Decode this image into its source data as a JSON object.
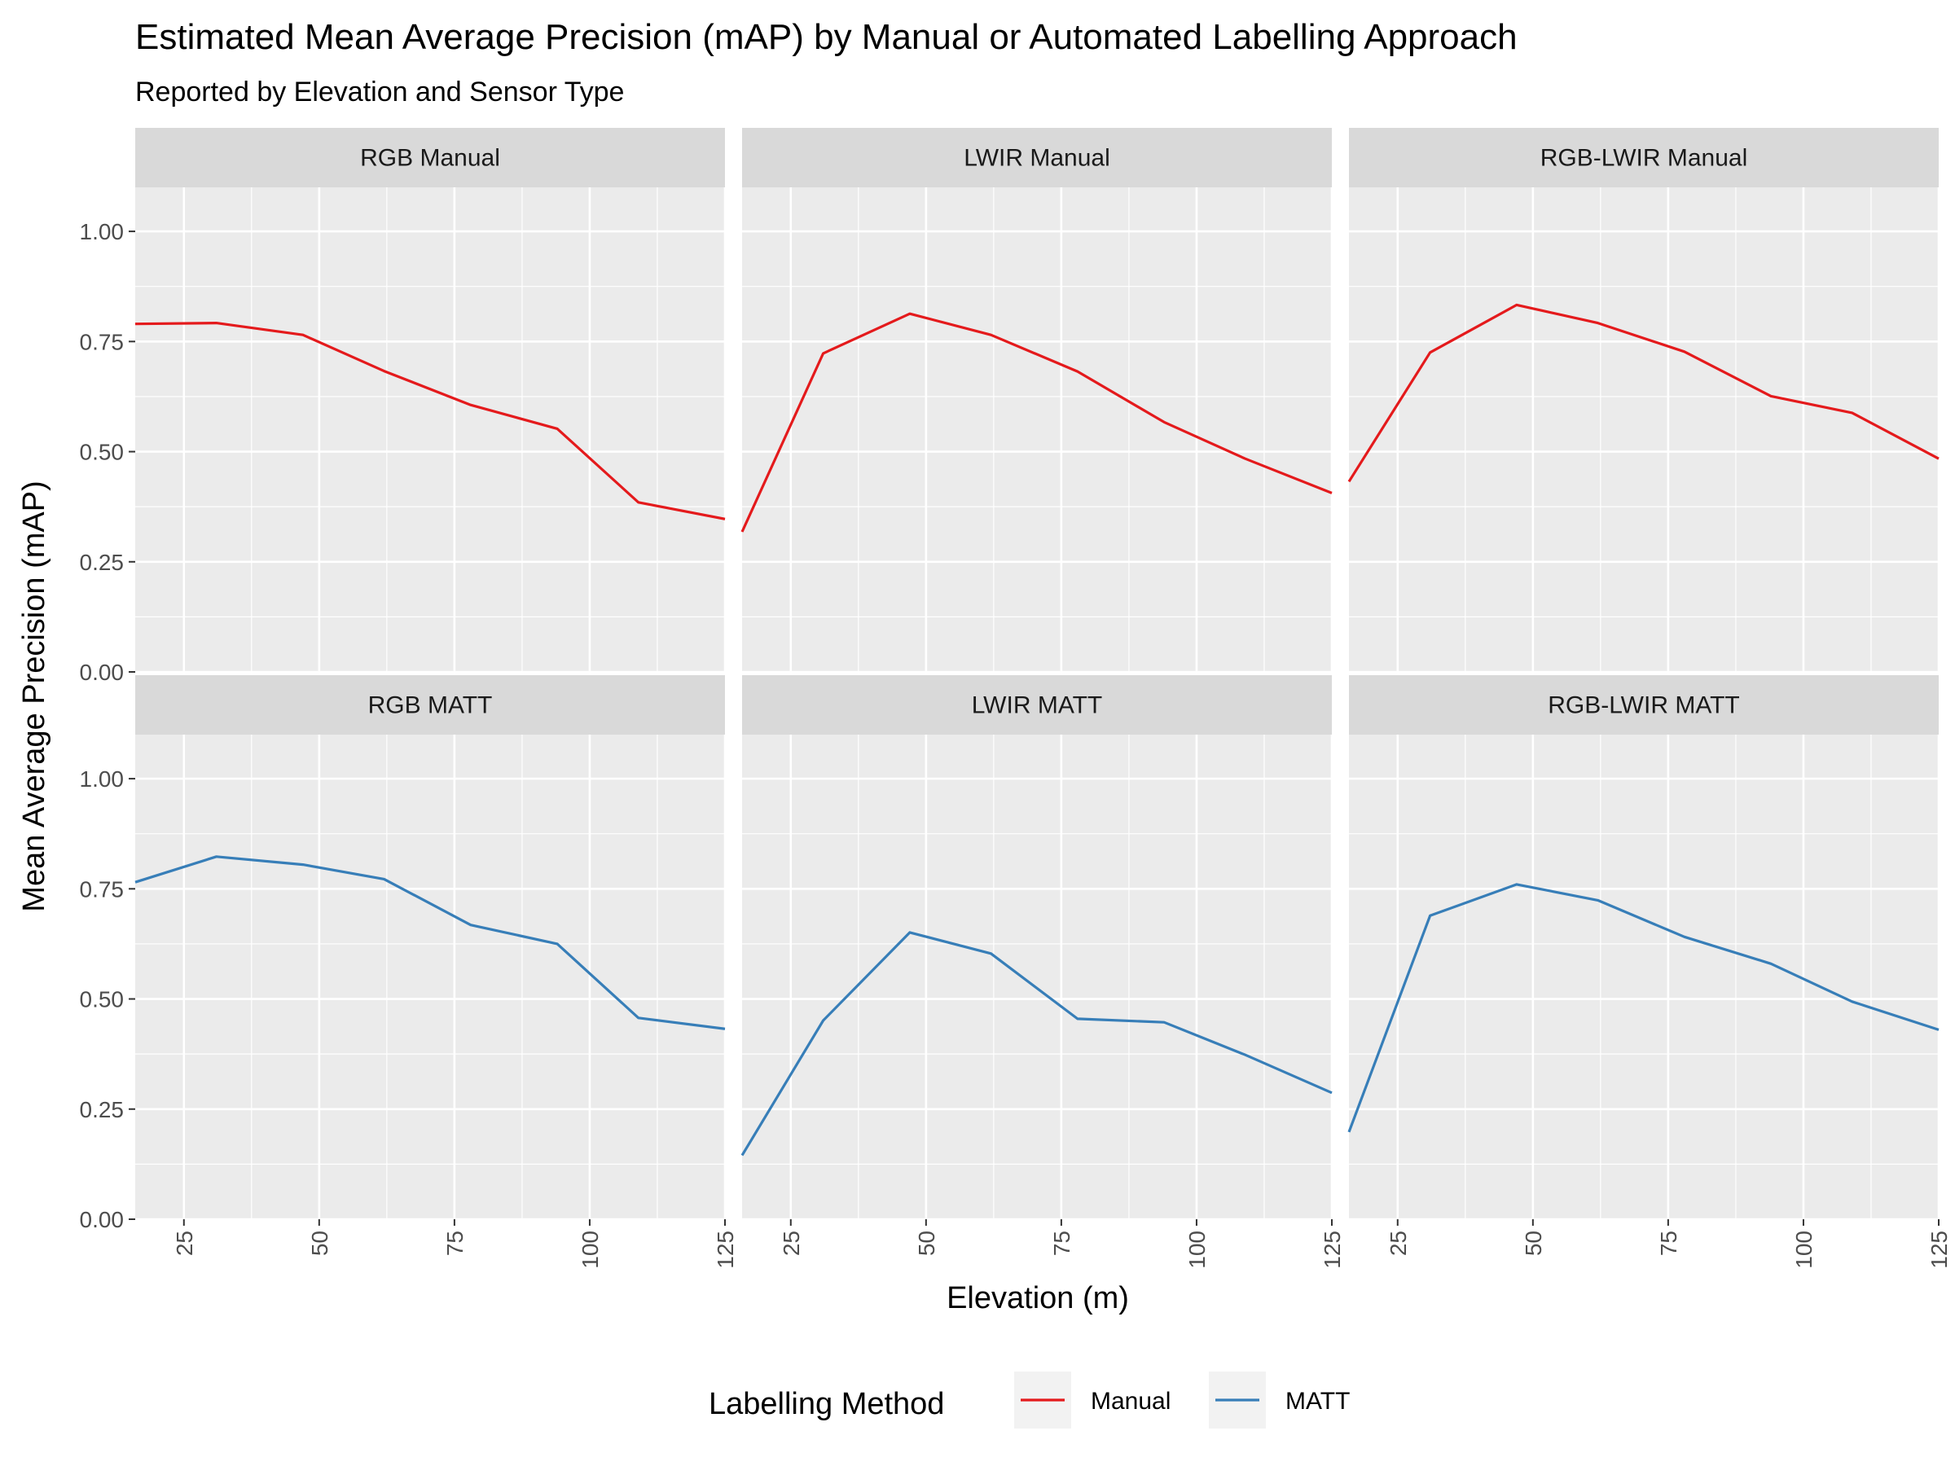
{
  "chart_data": {
    "type": "line",
    "title": "Estimated Mean Average Precision (mAP) by Manual or Automated Labelling Approach",
    "subtitle": "Reported by Elevation and Sensor Type",
    "xlabel": "Elevation (m)",
    "ylabel": "Mean Average Precision (mAP)",
    "xlim": [
      16,
      125
    ],
    "ylim": [
      0,
      1.1
    ],
    "x_ticks": [
      25,
      50,
      75,
      100,
      125
    ],
    "x_tick_labels": [
      "25",
      "50",
      "75",
      "100",
      "125"
    ],
    "y_ticks": [
      0,
      0.25,
      0.5,
      0.75,
      1.0
    ],
    "y_tick_labels": [
      "0.00",
      "0.25",
      "0.50",
      "0.75",
      "1.00"
    ],
    "grid": true,
    "legend": {
      "title": "Labelling Method",
      "position": "bottom",
      "entries": [
        {
          "label": "Manual",
          "color": "#e41a1c"
        },
        {
          "label": "MATT",
          "color": "#377eb8"
        }
      ]
    },
    "panels": [
      {
        "label": "RGB Manual",
        "series": "Manual",
        "color": "#e41a1c",
        "x": [
          16,
          31,
          47,
          62,
          78,
          94,
          109,
          125
        ],
        "y": [
          0.79,
          0.792,
          0.765,
          0.683,
          0.606,
          0.552,
          0.385,
          0.347
        ]
      },
      {
        "label": "LWIR Manual",
        "series": "Manual",
        "color": "#e41a1c",
        "x": [
          16,
          31,
          47,
          62,
          78,
          94,
          109,
          125
        ],
        "y": [
          0.318,
          0.723,
          0.813,
          0.765,
          0.682,
          0.567,
          0.484,
          0.406
        ]
      },
      {
        "label": "RGB-LWIR Manual",
        "series": "Manual",
        "color": "#e41a1c",
        "x": [
          16,
          31,
          47,
          62,
          78,
          94,
          109,
          125
        ],
        "y": [
          0.432,
          0.725,
          0.833,
          0.792,
          0.727,
          0.626,
          0.588,
          0.484
        ]
      },
      {
        "label": "RGB MATT",
        "series": "MATT",
        "color": "#377eb8",
        "x": [
          16,
          31,
          47,
          62,
          78,
          94,
          109,
          125
        ],
        "y": [
          0.765,
          0.823,
          0.805,
          0.772,
          0.668,
          0.625,
          0.457,
          0.432
        ]
      },
      {
        "label": "LWIR MATT",
        "series": "MATT",
        "color": "#377eb8",
        "x": [
          16,
          31,
          47,
          62,
          78,
          94,
          109,
          125
        ],
        "y": [
          0.145,
          0.451,
          0.651,
          0.603,
          0.455,
          0.447,
          0.373,
          0.287
        ]
      },
      {
        "label": "RGB-LWIR MATT",
        "series": "MATT",
        "color": "#377eb8",
        "x": [
          16,
          31,
          47,
          62,
          78,
          94,
          109,
          125
        ],
        "y": [
          0.198,
          0.689,
          0.76,
          0.724,
          0.641,
          0.58,
          0.494,
          0.43
        ]
      }
    ]
  }
}
